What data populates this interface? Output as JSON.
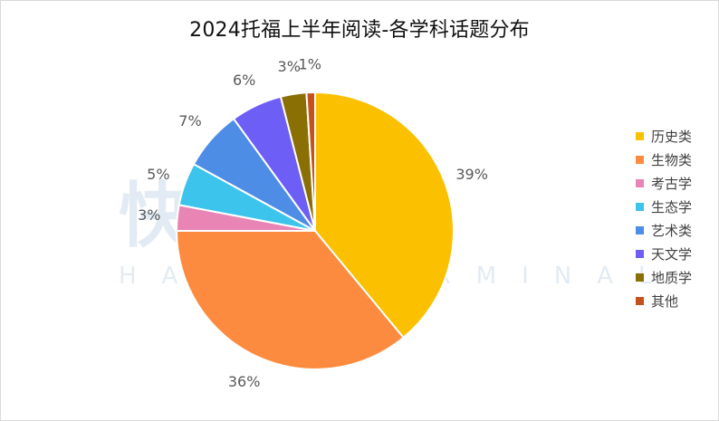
{
  "title": "2024托福上半年阅读-各学科话题分布",
  "watermark": {
    "cn": "快乐青达",
    "en": "HAPPY TERMINAL"
  },
  "chart_data": {
    "type": "pie",
    "title": "2024托福上半年阅读-各学科话题分布",
    "categories": [
      "历史类",
      "生物类",
      "考古学",
      "生态学",
      "艺术类",
      "天文学",
      "地质学",
      "其他"
    ],
    "values": [
      39,
      36,
      3,
      5,
      7,
      6,
      3,
      1
    ],
    "labels": [
      "39%",
      "36%",
      "3%",
      "5%",
      "7%",
      "6%",
      "3%",
      "1%"
    ],
    "colors": [
      "#fbc000",
      "#fc8b40",
      "#e985b4",
      "#3cc4ec",
      "#4e8de6",
      "#6d5ff5",
      "#8a6f05",
      "#c5521c"
    ],
    "legend_position": "right",
    "start_angle": "12 o'clock",
    "direction": "clockwise"
  }
}
